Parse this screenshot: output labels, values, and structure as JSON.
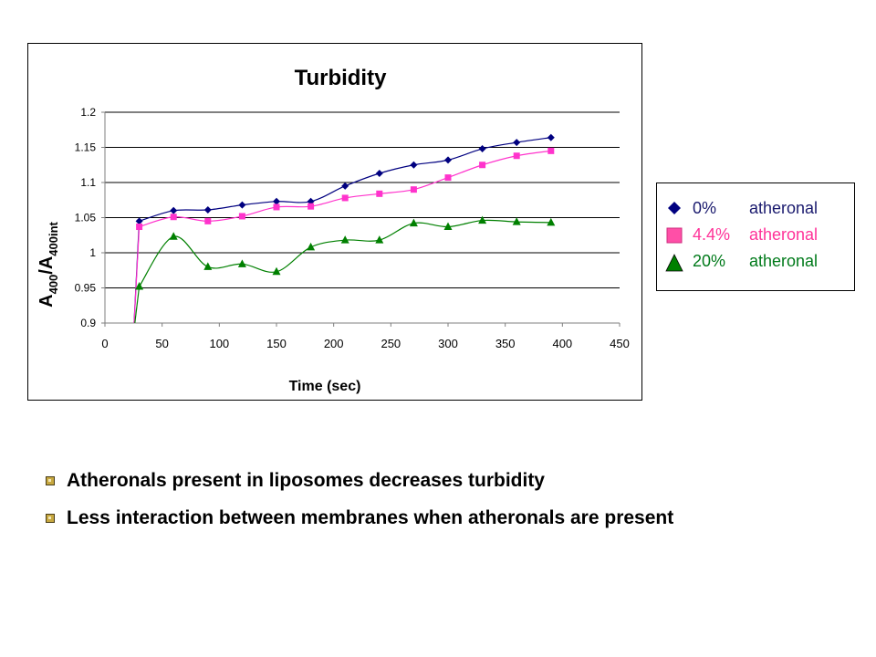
{
  "chart_data": {
    "type": "line",
    "title": "Turbidity",
    "xlabel": "Time (sec)",
    "ylabel": "A400/A400int",
    "ylabel_parts": {
      "main": "A",
      "sub1": "400",
      "slash": "/A",
      "sub2": "400int"
    },
    "xlim": [
      0,
      450
    ],
    "ylim": [
      0.9,
      1.2
    ],
    "x_ticks": [
      0,
      50,
      100,
      150,
      200,
      250,
      300,
      350,
      400,
      450
    ],
    "y_ticks": [
      0.9,
      0.95,
      1.0,
      1.05,
      1.1,
      1.15,
      1.2
    ],
    "y_tick_labels": [
      "0.9",
      "0.95",
      "1",
      "1.05",
      "1.1",
      "1.15",
      "1.2"
    ],
    "grid": "horizontal",
    "legend_position": "right",
    "series": [
      {
        "name": "0% atheronal",
        "pct": "0%",
        "word": "atheronal",
        "color": "#000080",
        "text_color": "#1a1a6e",
        "marker": "diamond",
        "x": [
          30,
          60,
          90,
          120,
          150,
          180,
          210,
          240,
          270,
          300,
          330,
          360,
          390
        ],
        "y": [
          1.045,
          1.06,
          1.061,
          1.068,
          1.073,
          1.073,
          1.095,
          1.113,
          1.125,
          1.132,
          1.148,
          1.157,
          1.164
        ]
      },
      {
        "name": "4.4% atheronal",
        "pct": "4.4%",
        "word": "atheronal",
        "color": "#ff33cc",
        "text_color": "#ff3399",
        "marker": "square",
        "x": [
          30,
          60,
          90,
          120,
          150,
          180,
          210,
          240,
          270,
          300,
          330,
          360,
          390
        ],
        "y": [
          1.037,
          1.051,
          1.045,
          1.052,
          1.065,
          1.066,
          1.078,
          1.084,
          1.09,
          1.107,
          1.125,
          1.138,
          1.145
        ]
      },
      {
        "name": "20% atheronal",
        "pct": "20%",
        "word": "atheronal",
        "color": "#008000",
        "text_color": "#007a1a",
        "marker": "triangle",
        "x": [
          30,
          60,
          90,
          120,
          150,
          180,
          210,
          240,
          270,
          300,
          330,
          360,
          390
        ],
        "y": [
          0.952,
          1.023,
          0.98,
          0.984,
          0.973,
          1.008,
          1.018,
          1.018,
          1.042,
          1.037,
          1.046,
          1.044,
          1.043
        ]
      }
    ]
  },
  "bullets": [
    "Atheronals present in liposomes decreases turbidity",
    "Less interaction between membranes when atheronals are present"
  ]
}
